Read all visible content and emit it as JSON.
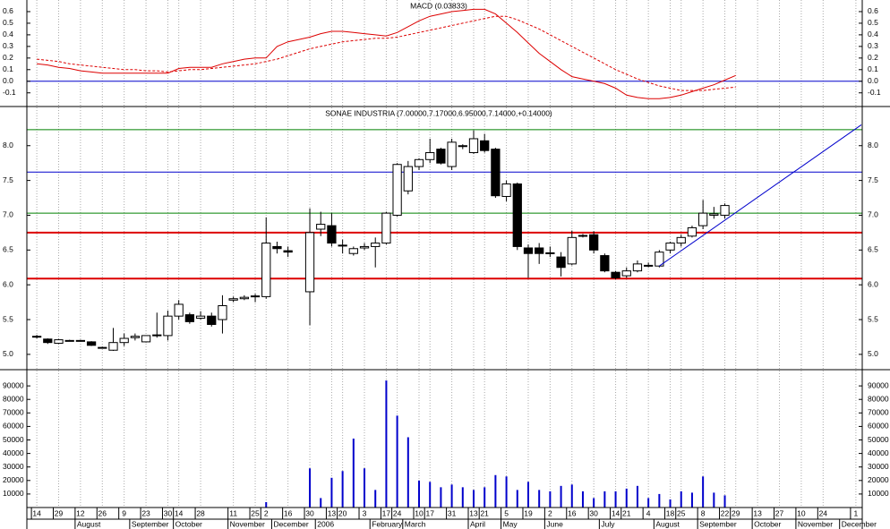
{
  "chart_data": [
    {
      "type": "line",
      "title": "MACD (0.03833)",
      "ylim": [
        -0.21,
        0.7
      ],
      "yticks": [
        -0.1,
        {
          "value": 0,
          "label": "0.0"
        },
        0.1,
        0.2,
        0.3,
        0.4,
        0.5,
        0.6
      ],
      "hlines": [
        {
          "value": 0,
          "color": "#0000cc"
        }
      ],
      "series": [
        {
          "name": "MACD",
          "color": "#dd0000",
          "style": "solid",
          "values": [
            0.15,
            0.14,
            0.12,
            0.11,
            0.09,
            0.08,
            0.07,
            0.07,
            0.07,
            0.07,
            0.07,
            0.07,
            0.07,
            0.11,
            0.12,
            0.12,
            0.12,
            0.15,
            0.17,
            0.19,
            0.2,
            0.2,
            0.3,
            0.34,
            0.36,
            0.38,
            0.41,
            0.43,
            0.43,
            0.42,
            0.41,
            0.4,
            0.39,
            0.42,
            0.47,
            0.52,
            0.56,
            0.58,
            0.6,
            0.61,
            0.62,
            0.62,
            0.58,
            0.5,
            0.42,
            0.33,
            0.24,
            0.17,
            0.1,
            0.04,
            0.02,
            0.0,
            -0.02,
            -0.06,
            -0.12,
            -0.14,
            -0.15,
            -0.15,
            -0.14,
            -0.12,
            -0.09,
            -0.06,
            -0.03,
            0.01,
            0.05,
            null,
            null,
            null,
            null,
            null,
            null,
            null,
            null,
            null,
            null,
            null
          ]
        },
        {
          "name": "Signal",
          "color": "#dd0000",
          "style": "dashed",
          "values": [
            0.19,
            0.18,
            0.17,
            0.15,
            0.14,
            0.13,
            0.12,
            0.11,
            0.1,
            0.1,
            0.09,
            0.09,
            0.08,
            0.09,
            0.1,
            0.1,
            0.11,
            0.12,
            0.13,
            0.14,
            0.15,
            0.17,
            0.19,
            0.22,
            0.25,
            0.28,
            0.3,
            0.32,
            0.34,
            0.35,
            0.36,
            0.37,
            0.37,
            0.38,
            0.4,
            0.42,
            0.44,
            0.46,
            0.48,
            0.5,
            0.52,
            0.54,
            0.56,
            0.56,
            0.53,
            0.49,
            0.45,
            0.4,
            0.35,
            0.3,
            0.25,
            0.2,
            0.15,
            0.1,
            0.06,
            0.02,
            -0.01,
            -0.04,
            -0.06,
            -0.08,
            -0.08,
            -0.08,
            -0.07,
            -0.06,
            -0.05,
            null,
            null,
            null,
            null,
            null,
            null,
            null,
            null,
            null,
            null,
            null
          ]
        }
      ]
    },
    {
      "type": "candlestick",
      "title": "SONAE INDUSTRIA (7.00000,7.17000,6.95000,7.14000,+0.14000)",
      "ylim": [
        4.78,
        8.55
      ],
      "yticks": [
        {
          "value": 5,
          "label": "5.0"
        },
        5.5,
        {
          "value": 6,
          "label": "6.0"
        },
        6.5,
        {
          "value": 7,
          "label": "7.0"
        },
        7.5,
        {
          "value": 8,
          "label": "8.0"
        }
      ],
      "up_color": "#ffffff",
      "down_color": "#000000",
      "hlines": [
        {
          "value": 8.23,
          "color": "#008000"
        },
        {
          "value": 7.62,
          "color": "#0000cc"
        },
        {
          "value": 7.03,
          "color": "#008000"
        },
        {
          "value": 6.75,
          "color": "#dd0000",
          "weight": "bold"
        },
        {
          "value": 6.09,
          "color": "#dd0000",
          "weight": "bold"
        }
      ],
      "trendline": {
        "x": [
          57,
          75.5
        ],
        "y": [
          6.27,
          8.3
        ],
        "color": "#0000cc"
      },
      "open": [
        5.25,
        5.22,
        5.16,
        5.2,
        5.2,
        5.18,
        5.1,
        5.06,
        5.17,
        5.24,
        5.18,
        5.27,
        5.27,
        5.55,
        5.57,
        5.52,
        5.55,
        5.5,
        5.78,
        5.8,
        5.83,
        5.83,
        6.55,
        6.49,
        null,
        5.9,
        6.8,
        6.85,
        6.57,
        6.45,
        6.53,
        6.55,
        6.6,
        7.0,
        7.35,
        7.7,
        7.8,
        7.95,
        7.7,
        8.0,
        7.9,
        8.07,
        7.95,
        7.27,
        7.45,
        6.53,
        6.53,
        6.45,
        6.4,
        6.3,
        6.7,
        6.72,
        6.42,
        6.18,
        6.13,
        6.2,
        6.28,
        6.27,
        6.5,
        6.6,
        6.7,
        6.85,
        7.0,
        7.0,
        null,
        null,
        null,
        null,
        null,
        null,
        null,
        null,
        null,
        null,
        null,
        null
      ],
      "high": [
        5.28,
        5.23,
        5.22,
        5.21,
        5.21,
        5.19,
        5.11,
        5.38,
        5.3,
        5.3,
        5.27,
        5.6,
        5.63,
        5.78,
        5.6,
        5.62,
        5.6,
        5.85,
        5.83,
        5.85,
        5.87,
        6.97,
        6.62,
        6.55,
        null,
        7.1,
        7.05,
        7.03,
        6.65,
        6.55,
        6.6,
        6.68,
        7.05,
        7.75,
        7.78,
        7.82,
        8.1,
        7.97,
        8.1,
        8.02,
        8.22,
        8.17,
        7.97,
        7.5,
        7.47,
        6.58,
        6.6,
        6.55,
        6.47,
        6.78,
        6.73,
        6.77,
        6.45,
        6.2,
        6.25,
        6.35,
        6.32,
        6.5,
        6.62,
        6.72,
        6.85,
        7.22,
        7.12,
        7.17,
        null,
        null,
        null,
        null,
        null,
        null,
        null,
        null,
        null,
        null,
        null,
        null
      ],
      "low": [
        5.23,
        5.15,
        5.15,
        5.19,
        5.19,
        5.12,
        5.09,
        5.05,
        5.12,
        5.2,
        5.17,
        5.24,
        5.2,
        5.5,
        5.44,
        5.5,
        5.4,
        5.3,
        5.75,
        5.78,
        5.75,
        5.8,
        6.45,
        6.4,
        null,
        5.42,
        6.7,
        6.55,
        6.45,
        6.42,
        6.5,
        6.25,
        6.58,
        6.98,
        7.3,
        7.65,
        7.75,
        7.73,
        7.65,
        7.95,
        7.88,
        7.9,
        7.25,
        7.2,
        6.5,
        6.1,
        6.3,
        6.4,
        6.12,
        6.28,
        6.68,
        6.45,
        6.18,
        6.08,
        6.1,
        6.18,
        6.25,
        6.25,
        6.45,
        6.55,
        6.68,
        6.8,
        6.95,
        6.95,
        null,
        null,
        null,
        null,
        null,
        null,
        null,
        null,
        null,
        null,
        null,
        null
      ],
      "close": [
        5.26,
        5.17,
        5.21,
        5.2,
        5.2,
        5.13,
        5.1,
        5.17,
        5.23,
        5.26,
        5.27,
        5.28,
        5.55,
        5.72,
        5.47,
        5.55,
        5.43,
        5.7,
        5.8,
        5.82,
        5.84,
        6.6,
        6.52,
        6.47,
        null,
        6.75,
        6.87,
        6.6,
        6.56,
        6.52,
        6.55,
        6.6,
        7.03,
        7.73,
        7.7,
        7.8,
        7.9,
        7.75,
        8.05,
        8.0,
        8.1,
        7.93,
        7.28,
        7.45,
        6.55,
        6.45,
        6.45,
        6.46,
        6.25,
        6.68,
        6.71,
        6.5,
        6.2,
        6.1,
        6.2,
        6.3,
        6.28,
        6.47,
        6.6,
        6.68,
        6.82,
        7.03,
        7.02,
        7.14,
        null,
        null,
        null,
        null,
        null,
        null,
        null,
        null,
        null,
        null,
        null,
        null
      ]
    },
    {
      "type": "bar",
      "color": "#0000cc",
      "ylim": [
        0,
        102000
      ],
      "yticks": [
        10000,
        20000,
        30000,
        40000,
        50000,
        60000,
        70000,
        80000,
        90000
      ],
      "categories": [
        "14",
        null,
        "29",
        null,
        "12",
        null,
        "26",
        null,
        "9",
        null,
        "23",
        null,
        "30",
        "14",
        null,
        "28",
        null,
        null,
        "11",
        null,
        "25",
        "2",
        null,
        "16",
        null,
        "30",
        null,
        "13",
        "20",
        null,
        "3",
        null,
        "17",
        "24",
        null,
        "10",
        "17",
        null,
        "31",
        null,
        "13",
        "21",
        null,
        "5",
        null,
        "19",
        null,
        "2",
        null,
        "16",
        null,
        "30",
        null,
        "14",
        "21",
        null,
        "4",
        null,
        "18",
        "25",
        null,
        "8",
        null,
        "22",
        "29",
        null,
        "13",
        null,
        "27",
        null,
        "10",
        null,
        "24",
        null,
        null,
        "1"
      ],
      "months": [
        null,
        null,
        null,
        null,
        "August",
        null,
        null,
        null,
        null,
        "September",
        null,
        null,
        null,
        "October",
        null,
        null,
        null,
        null,
        "November",
        null,
        null,
        null,
        "December",
        null,
        null,
        null,
        "2006",
        null,
        null,
        null,
        null,
        "February",
        null,
        null,
        "March",
        null,
        null,
        null,
        null,
        null,
        "April",
        null,
        null,
        "May",
        null,
        null,
        null,
        "June",
        null,
        null,
        null,
        null,
        "July",
        null,
        null,
        null,
        null,
        "August",
        null,
        null,
        null,
        "September",
        null,
        null,
        null,
        null,
        "October",
        null,
        null,
        null,
        "November",
        null,
        null,
        null,
        "December",
        null
      ],
      "values": [
        0,
        0,
        0,
        0,
        0,
        0,
        0,
        0,
        0,
        0,
        0,
        0,
        0,
        0,
        0,
        0,
        0,
        0,
        0,
        0,
        0,
        4000,
        0,
        0,
        null,
        29000,
        7000,
        22000,
        27000,
        51000,
        29000,
        13000,
        94000,
        68000,
        52000,
        20000,
        19000,
        15000,
        17000,
        15000,
        13000,
        15000,
        24000,
        23000,
        13000,
        19000,
        13000,
        12000,
        16000,
        17000,
        12000,
        7000,
        12000,
        12000,
        14000,
        16000,
        7000,
        10000,
        6000,
        12000,
        11000,
        23000,
        11000,
        9000,
        null,
        null,
        null,
        null,
        null,
        null,
        null,
        null,
        null,
        null,
        null,
        null
      ]
    }
  ]
}
